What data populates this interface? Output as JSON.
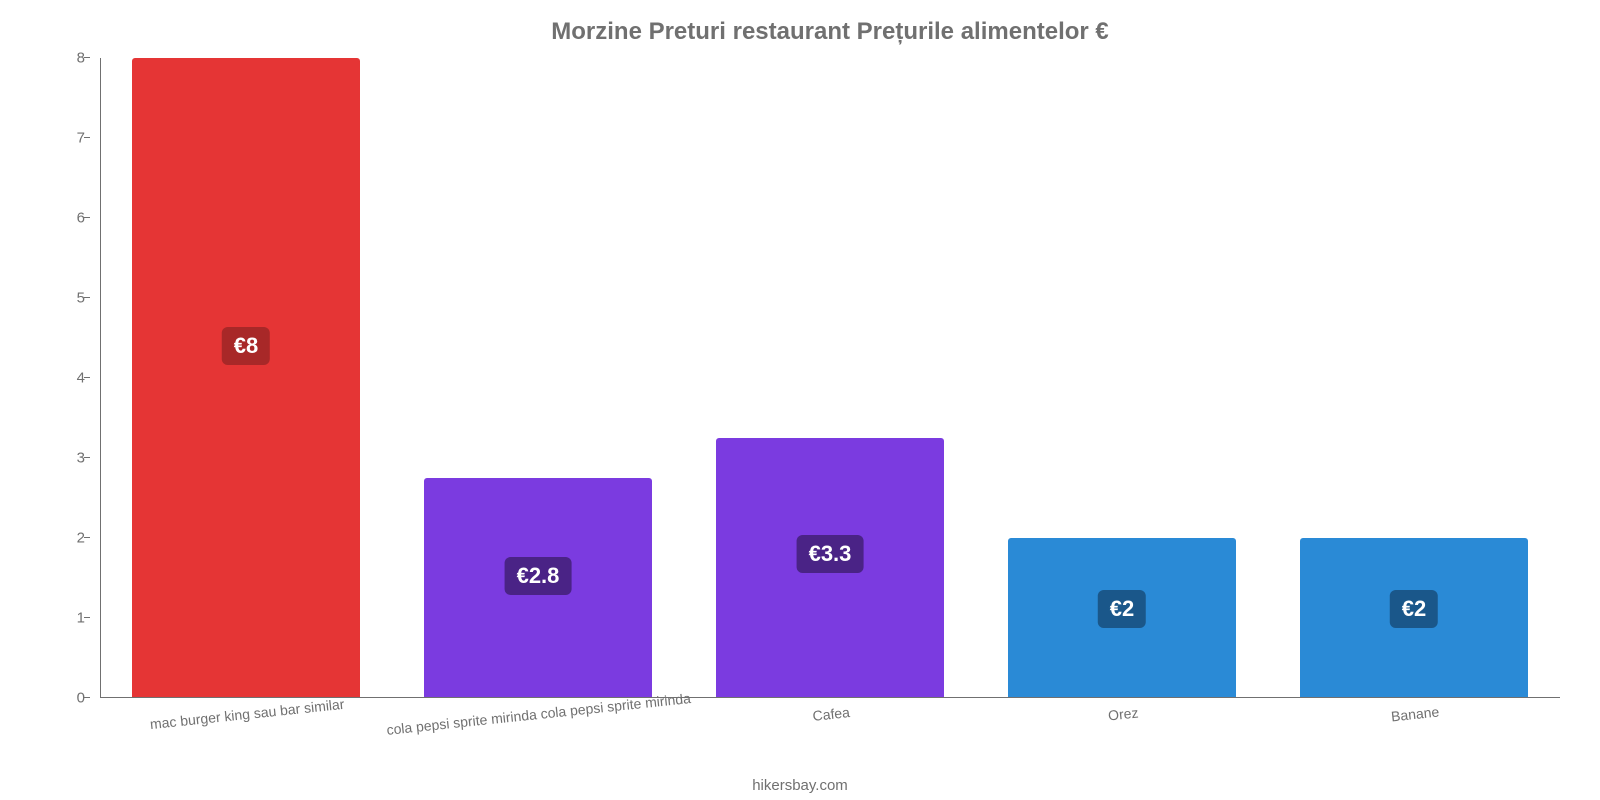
{
  "chart": {
    "type": "bar",
    "title": "Morzine Preturi restaurant Prețurile alimentelor €",
    "title_fontsize": 24,
    "title_color": "#707070",
    "background_color": "#ffffff",
    "footer": "hikersbay.com",
    "footer_fontsize": 15,
    "footer_color": "#707070",
    "axis_color": "#707070",
    "tick_label_color": "#707070",
    "tick_label_fontsize": 15,
    "x_label_fontsize": 14,
    "x_label_rotation_deg": -6,
    "ylim": [
      0,
      8
    ],
    "yticks": [
      0,
      1,
      2,
      3,
      4,
      5,
      6,
      7,
      8
    ],
    "bar_width_ratio": 0.78,
    "value_badge_fontsize": 22,
    "value_badge_radius": 6,
    "value_badge_colors": {
      "#e53535": "#a82828",
      "#7b3be0": "#4a2386",
      "#2a8ad6": "#1a578a"
    },
    "categories": [
      "mac burger king sau bar similar",
      "cola pepsi sprite mirinda cola pepsi sprite mirinda",
      "Cafea",
      "Orez",
      "Banane"
    ],
    "values": [
      8,
      2.75,
      3.25,
      2,
      2
    ],
    "value_labels": [
      "€8",
      "€2.8",
      "€3.3",
      "€2",
      "€2"
    ],
    "bar_colors": [
      "#e53535",
      "#7b3be0",
      "#7b3be0",
      "#2a8ad6",
      "#2a8ad6"
    ]
  }
}
